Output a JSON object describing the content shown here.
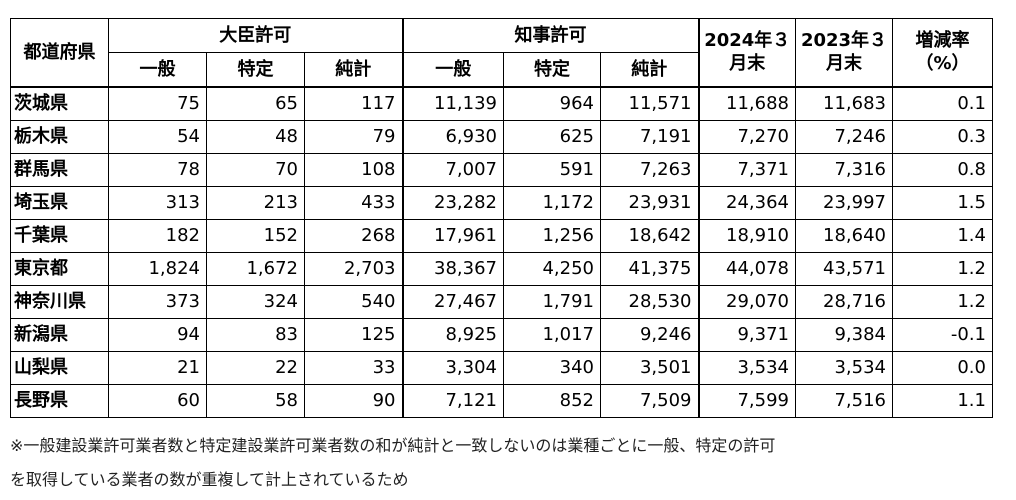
{
  "header": {
    "prefecture": "都道府県",
    "minister_group": "大臣許可",
    "governor_group": "知事許可",
    "sub_general": "一般",
    "sub_specific": "特定",
    "sub_net": "純計",
    "col_2024": "2024年３月末",
    "col_2023": "2023年３月末",
    "col_rate": "増減率（%）"
  },
  "rows": [
    {
      "pref": "茨城県",
      "m_gen": "75",
      "m_spec": "65",
      "m_net": "117",
      "g_gen": "11,139",
      "g_spec": "964",
      "g_net": "11,571",
      "y2024": "11,688",
      "y2023": "11,683",
      "rate": "0.1"
    },
    {
      "pref": "栃木県",
      "m_gen": "54",
      "m_spec": "48",
      "m_net": "79",
      "g_gen": "6,930",
      "g_spec": "625",
      "g_net": "7,191",
      "y2024": "7,270",
      "y2023": "7,246",
      "rate": "0.3"
    },
    {
      "pref": "群馬県",
      "m_gen": "78",
      "m_spec": "70",
      "m_net": "108",
      "g_gen": "7,007",
      "g_spec": "591",
      "g_net": "7,263",
      "y2024": "7,371",
      "y2023": "7,316",
      "rate": "0.8"
    },
    {
      "pref": "埼玉県",
      "m_gen": "313",
      "m_spec": "213",
      "m_net": "433",
      "g_gen": "23,282",
      "g_spec": "1,172",
      "g_net": "23,931",
      "y2024": "24,364",
      "y2023": "23,997",
      "rate": "1.5"
    },
    {
      "pref": "千葉県",
      "m_gen": "182",
      "m_spec": "152",
      "m_net": "268",
      "g_gen": "17,961",
      "g_spec": "1,256",
      "g_net": "18,642",
      "y2024": "18,910",
      "y2023": "18,640",
      "rate": "1.4"
    },
    {
      "pref": "東京都",
      "m_gen": "1,824",
      "m_spec": "1,672",
      "m_net": "2,703",
      "g_gen": "38,367",
      "g_spec": "4,250",
      "g_net": "41,375",
      "y2024": "44,078",
      "y2023": "43,571",
      "rate": "1.2"
    },
    {
      "pref": "神奈川県",
      "m_gen": "373",
      "m_spec": "324",
      "m_net": "540",
      "g_gen": "27,467",
      "g_spec": "1,791",
      "g_net": "28,530",
      "y2024": "29,070",
      "y2023": "28,716",
      "rate": "1.2"
    },
    {
      "pref": "新潟県",
      "m_gen": "94",
      "m_spec": "83",
      "m_net": "125",
      "g_gen": "8,925",
      "g_spec": "1,017",
      "g_net": "9,246",
      "y2024": "9,371",
      "y2023": "9,384",
      "rate": "-0.1"
    },
    {
      "pref": "山梨県",
      "m_gen": "21",
      "m_spec": "22",
      "m_net": "33",
      "g_gen": "3,304",
      "g_spec": "340",
      "g_net": "3,501",
      "y2024": "3,534",
      "y2023": "3,534",
      "rate": "0.0"
    },
    {
      "pref": "長野県",
      "m_gen": "60",
      "m_spec": "58",
      "m_net": "90",
      "g_gen": "7,121",
      "g_spec": "852",
      "g_net": "7,509",
      "y2024": "7,599",
      "y2023": "7,516",
      "rate": "1.1"
    }
  ],
  "note": {
    "line1": "※一般建設業許可業者数と特定建設業許可業者数の和が純計と一致しないのは業種ごとに一般、特定の許可",
    "line2": "を取得している業者の数が重複して計上されているため"
  }
}
